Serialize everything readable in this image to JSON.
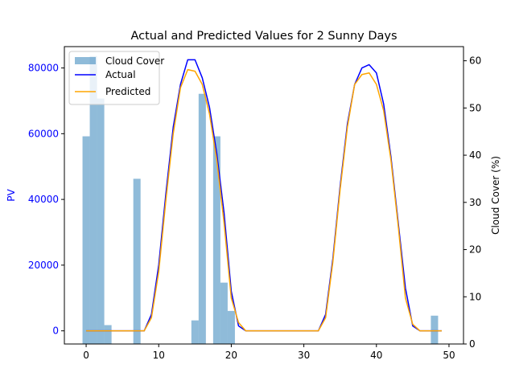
{
  "chart_data": {
    "type": "line",
    "title": "Actual and Predicted Values for 2 Sunny Days",
    "xlabel": "",
    "ylabel": "PV",
    "y2label": "Cloud Cover (%)",
    "xlim": [
      -3,
      52
    ],
    "ylim": [
      -4000,
      86500
    ],
    "y2lim": [
      0,
      63
    ],
    "x_ticks": [
      0,
      10,
      20,
      30,
      40,
      50
    ],
    "y_ticks": [
      0,
      20000,
      40000,
      60000,
      80000
    ],
    "y2_ticks": [
      0,
      10,
      20,
      30,
      40,
      50,
      60
    ],
    "grid": false,
    "legend": {
      "position": "top-left"
    },
    "colors": {
      "actual": "#0000ff",
      "predicted": "#ffa500",
      "cloud": "#1f77b4",
      "left_axis": "#0000ff"
    },
    "x": [
      0,
      1,
      2,
      3,
      4,
      5,
      6,
      7,
      8,
      9,
      10,
      11,
      12,
      13,
      14,
      15,
      16,
      17,
      18,
      19,
      20,
      21,
      22,
      23,
      24,
      25,
      26,
      27,
      28,
      29,
      30,
      31,
      32,
      33,
      34,
      35,
      36,
      37,
      38,
      39,
      40,
      41,
      42,
      43,
      44,
      45,
      46,
      47,
      48,
      49
    ],
    "series": [
      {
        "name": "Actual",
        "axis": "left",
        "values": [
          0,
          0,
          0,
          0,
          0,
          0,
          0,
          0,
          0,
          5000,
          20000,
          42000,
          62000,
          75000,
          82500,
          82500,
          77000,
          68000,
          54000,
          36000,
          12000,
          1500,
          0,
          0,
          0,
          0,
          0,
          0,
          0,
          0,
          0,
          0,
          0,
          5000,
          22000,
          44000,
          63000,
          75000,
          80000,
          81000,
          78500,
          69000,
          53000,
          33000,
          13000,
          1500,
          0,
          0,
          0,
          0
        ]
      },
      {
        "name": "Predicted",
        "axis": "left",
        "values": [
          0,
          0,
          0,
          0,
          0,
          0,
          0,
          0,
          0,
          4000,
          18000,
          40000,
          60000,
          74000,
          79500,
          79000,
          75000,
          66000,
          52000,
          33000,
          10000,
          2500,
          0,
          0,
          0,
          0,
          0,
          0,
          0,
          0,
          0,
          0,
          0,
          4000,
          21000,
          43000,
          62000,
          75000,
          78000,
          78500,
          75000,
          67000,
          52000,
          32000,
          10000,
          2000,
          0,
          0,
          0,
          0
        ]
      }
    ],
    "cloud_series": {
      "name": "Cloud Cover",
      "axis": "right",
      "type": "bar",
      "x": [
        0,
        1,
        2,
        3,
        7,
        15,
        16,
        18,
        19,
        20,
        48
      ],
      "values": [
        44,
        61,
        52,
        4,
        35,
        5,
        53,
        44,
        13,
        7,
        6
      ]
    }
  }
}
